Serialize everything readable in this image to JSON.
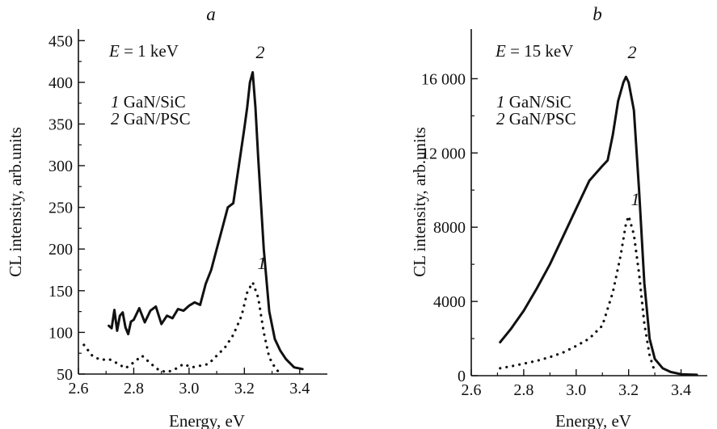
{
  "chart_data": [
    {
      "type": "line",
      "panel": "a",
      "xlabel": "Energy, eV",
      "ylabel": "CL intensity, arb.units",
      "xlim": [
        2.6,
        3.5
      ],
      "ylim": [
        50,
        460
      ],
      "xticks": [
        2.6,
        2.8,
        3.0,
        3.2,
        3.4
      ],
      "xtick_labels": [
        "2.6",
        "2.8",
        "3.0",
        "3.2",
        "3.4"
      ],
      "yticks": [
        50,
        100,
        150,
        200,
        250,
        300,
        350,
        400,
        450
      ],
      "ytick_labels": [
        "50",
        "100",
        "150",
        "200",
        "250",
        "300",
        "350",
        "400",
        "450"
      ],
      "annotation": {
        "var": "E",
        "rest": " = 1 keV"
      },
      "legend": [
        {
          "num": "1",
          "text": " GaN/SiC"
        },
        {
          "num": "2",
          "text": " GaN/PSC"
        }
      ],
      "series": [
        {
          "name": "1",
          "style": "dotted",
          "x": [
            2.62,
            2.65,
            2.68,
            2.71,
            2.74,
            2.77,
            2.8,
            2.83,
            2.86,
            2.89,
            2.92,
            2.95,
            2.98,
            3.01,
            3.04,
            3.07,
            3.1,
            3.13,
            3.16,
            3.19,
            3.21,
            3.23,
            3.25,
            3.27,
            3.29,
            3.31,
            3.33
          ],
          "y": [
            85,
            72,
            67,
            68,
            63,
            57,
            64,
            72,
            63,
            55,
            52,
            56,
            62,
            58,
            60,
            62,
            72,
            82,
            97,
            120,
            148,
            160,
            142,
            100,
            70,
            58,
            50
          ]
        },
        {
          "name": "2",
          "style": "solid",
          "x": [
            2.71,
            2.72,
            2.73,
            2.74,
            2.75,
            2.76,
            2.77,
            2.78,
            2.79,
            2.8,
            2.82,
            2.84,
            2.86,
            2.88,
            2.9,
            2.92,
            2.94,
            2.96,
            2.98,
            3.0,
            3.02,
            3.04,
            3.06,
            3.08,
            3.1,
            3.12,
            3.14,
            3.16,
            3.18,
            3.2,
            3.21,
            3.22,
            3.23,
            3.24,
            3.25,
            3.27,
            3.29,
            3.31,
            3.33,
            3.35,
            3.38,
            3.41
          ],
          "y": [
            108,
            105,
            127,
            102,
            120,
            124,
            106,
            98,
            113,
            115,
            129,
            112,
            126,
            131,
            110,
            120,
            117,
            128,
            126,
            132,
            136,
            133,
            158,
            175,
            200,
            225,
            250,
            255,
            300,
            345,
            370,
            400,
            412,
            370,
            310,
            200,
            125,
            92,
            78,
            68,
            58,
            56
          ]
        }
      ],
      "curve_labels": [
        "1",
        "2"
      ]
    },
    {
      "type": "line",
      "panel": "b",
      "xlabel": "Energy, eV",
      "ylabel": "CL intensity, arb.units",
      "xlim": [
        2.6,
        3.5
      ],
      "ylim": [
        0,
        18500
      ],
      "xticks": [
        2.6,
        2.8,
        3.0,
        3.2,
        3.4
      ],
      "xtick_labels": [
        "2.6",
        "2.8",
        "3.0",
        "3.2",
        "3.4"
      ],
      "yticks": [
        0,
        4000,
        8000,
        12000,
        16000
      ],
      "ytick_labels": [
        "0",
        "4000",
        "8000",
        "12 000",
        "16 000"
      ],
      "annotation": {
        "var": "E",
        "rest": " = 15 keV"
      },
      "legend": [
        {
          "num": "1",
          "text": " GaN/SiC"
        },
        {
          "num": "2",
          "text": " GaN/PSC"
        }
      ],
      "series": [
        {
          "name": "1",
          "style": "dotted",
          "x": [
            2.71,
            2.75,
            2.8,
            2.85,
            2.9,
            2.95,
            3.0,
            3.05,
            3.1,
            3.14,
            3.17,
            3.19,
            3.2,
            3.22,
            3.24,
            3.26,
            3.28,
            3.3
          ],
          "y": [
            400,
            500,
            650,
            800,
            1000,
            1250,
            1600,
            2000,
            2700,
            4500,
            6500,
            8200,
            8600,
            7600,
            5500,
            2800,
            1100,
            200
          ]
        },
        {
          "name": "2",
          "style": "solid",
          "x": [
            2.71,
            2.75,
            2.8,
            2.85,
            2.9,
            2.95,
            3.0,
            3.05,
            3.1,
            3.12,
            3.14,
            3.16,
            3.18,
            3.19,
            3.2,
            3.22,
            3.24,
            3.26,
            3.28,
            3.3,
            3.33,
            3.36,
            3.4,
            3.43,
            3.46
          ],
          "y": [
            1800,
            2500,
            3500,
            4700,
            6000,
            7500,
            9000,
            10500,
            11300,
            11600,
            13000,
            14800,
            15800,
            16100,
            15800,
            14300,
            10000,
            5000,
            2000,
            900,
            400,
            200,
            80,
            60,
            50
          ]
        }
      ],
      "curve_labels": [
        "1",
        "2"
      ]
    }
  ]
}
